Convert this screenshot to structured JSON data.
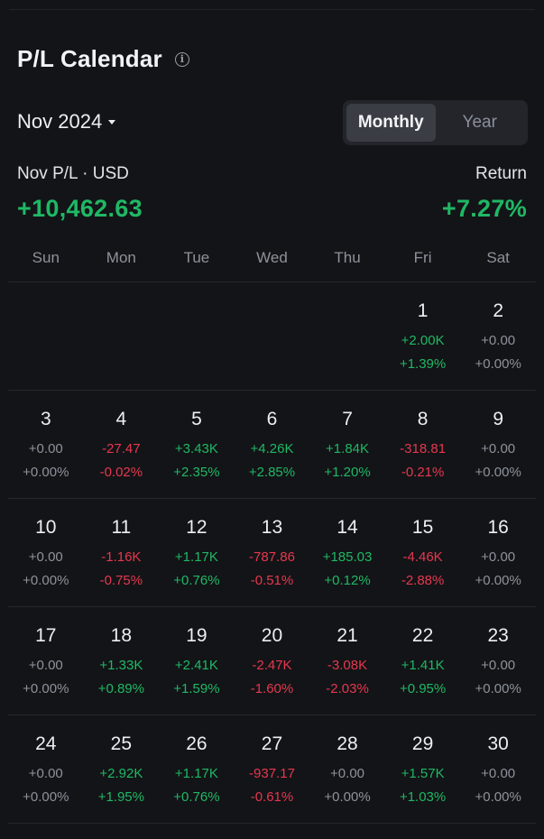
{
  "header": {
    "title": "P/L Calendar",
    "info_icon": "info-icon"
  },
  "month": {
    "label": "Nov 2024",
    "dropdown_icon": "caret-down-icon"
  },
  "view_toggle": {
    "options": [
      "Monthly",
      "Year"
    ],
    "selected": "Monthly"
  },
  "summary": {
    "pl_label": "Nov P/L · USD",
    "pl_value": "+10,462.63",
    "return_label": "Return",
    "return_value": "+7.27%"
  },
  "colors": {
    "positive": "#1fb865",
    "negative": "#e5384f",
    "neutral": "#8d929b",
    "background": "#131417"
  },
  "weekdays": [
    "Sun",
    "Mon",
    "Tue",
    "Wed",
    "Thu",
    "Fri",
    "Sat"
  ],
  "first_weekday_index": 5,
  "days": [
    {
      "day": "1",
      "pl": "+2.00K",
      "pct": "+1.39%",
      "sign": "pos"
    },
    {
      "day": "2",
      "pl": "+0.00",
      "pct": "+0.00%",
      "sign": "neu"
    },
    {
      "day": "3",
      "pl": "+0.00",
      "pct": "+0.00%",
      "sign": "neu"
    },
    {
      "day": "4",
      "pl": "-27.47",
      "pct": "-0.02%",
      "sign": "neg"
    },
    {
      "day": "5",
      "pl": "+3.43K",
      "pct": "+2.35%",
      "sign": "pos"
    },
    {
      "day": "6",
      "pl": "+4.26K",
      "pct": "+2.85%",
      "sign": "pos"
    },
    {
      "day": "7",
      "pl": "+1.84K",
      "pct": "+1.20%",
      "sign": "pos"
    },
    {
      "day": "8",
      "pl": "-318.81",
      "pct": "-0.21%",
      "sign": "neg"
    },
    {
      "day": "9",
      "pl": "+0.00",
      "pct": "+0.00%",
      "sign": "neu"
    },
    {
      "day": "10",
      "pl": "+0.00",
      "pct": "+0.00%",
      "sign": "neu"
    },
    {
      "day": "11",
      "pl": "-1.16K",
      "pct": "-0.75%",
      "sign": "neg"
    },
    {
      "day": "12",
      "pl": "+1.17K",
      "pct": "+0.76%",
      "sign": "pos"
    },
    {
      "day": "13",
      "pl": "-787.86",
      "pct": "-0.51%",
      "sign": "neg"
    },
    {
      "day": "14",
      "pl": "+185.03",
      "pct": "+0.12%",
      "sign": "pos"
    },
    {
      "day": "15",
      "pl": "-4.46K",
      "pct": "-2.88%",
      "sign": "neg"
    },
    {
      "day": "16",
      "pl": "+0.00",
      "pct": "+0.00%",
      "sign": "neu"
    },
    {
      "day": "17",
      "pl": "+0.00",
      "pct": "+0.00%",
      "sign": "neu"
    },
    {
      "day": "18",
      "pl": "+1.33K",
      "pct": "+0.89%",
      "sign": "pos"
    },
    {
      "day": "19",
      "pl": "+2.41K",
      "pct": "+1.59%",
      "sign": "pos"
    },
    {
      "day": "20",
      "pl": "-2.47K",
      "pct": "-1.60%",
      "sign": "neg"
    },
    {
      "day": "21",
      "pl": "-3.08K",
      "pct": "-2.03%",
      "sign": "neg"
    },
    {
      "day": "22",
      "pl": "+1.41K",
      "pct": "+0.95%",
      "sign": "pos"
    },
    {
      "day": "23",
      "pl": "+0.00",
      "pct": "+0.00%",
      "sign": "neu"
    },
    {
      "day": "24",
      "pl": "+0.00",
      "pct": "+0.00%",
      "sign": "neu"
    },
    {
      "day": "25",
      "pl": "+2.92K",
      "pct": "+1.95%",
      "sign": "pos"
    },
    {
      "day": "26",
      "pl": "+1.17K",
      "pct": "+0.76%",
      "sign": "pos"
    },
    {
      "day": "27",
      "pl": "-937.17",
      "pct": "-0.61%",
      "sign": "neg"
    },
    {
      "day": "28",
      "pl": "+0.00",
      "pct": "+0.00%",
      "sign": "neu"
    },
    {
      "day": "29",
      "pl": "+1.57K",
      "pct": "+1.03%",
      "sign": "pos"
    },
    {
      "day": "30",
      "pl": "+0.00",
      "pct": "+0.00%",
      "sign": "neu"
    }
  ]
}
